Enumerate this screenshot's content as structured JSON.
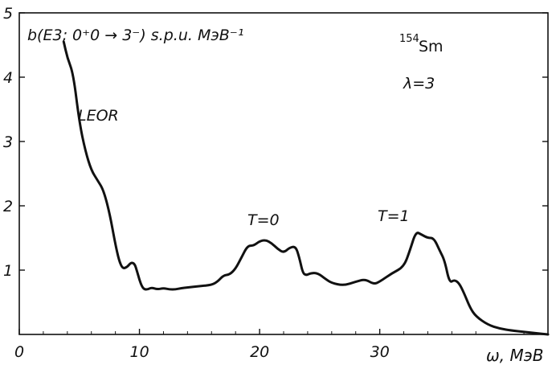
{
  "chart_data": {
    "type": "line",
    "ylabel": "b(E3; 0⁺0 → 3⁻) s.p.u. МэВ⁻¹",
    "xlabel": "ω, МэВ",
    "x_ticks": [
      "0",
      "10",
      "20",
      "30"
    ],
    "y_ticks": [
      "1",
      "2",
      "3",
      "4",
      "5"
    ],
    "xlim": [
      0,
      44
    ],
    "ylim": [
      0,
      5
    ],
    "grid": false,
    "legend": "none",
    "annotations": {
      "nucleus_mass": "154",
      "nucleus_symbol": "Sm",
      "lambda": "λ=3",
      "leor": "LEOR",
      "t0": "T=0",
      "t1": "T=1"
    },
    "series": [
      {
        "x": [
          3.7,
          4.0,
          4.5,
          5.0,
          5.5,
          6.0,
          6.5,
          7.0,
          7.5,
          8.0,
          8.3,
          8.6,
          9.0,
          9.3,
          9.6,
          9.8,
          10.0,
          10.2,
          10.4,
          10.7,
          11.0,
          11.5,
          12.0,
          12.5,
          13.0,
          13.5,
          14.0,
          15.0,
          16.0,
          16.5,
          17.0,
          17.5,
          18.0,
          18.5,
          19.0,
          19.5,
          20.0,
          20.5,
          21.0,
          21.5,
          22.0,
          22.5,
          23.0,
          23.3,
          23.6,
          23.9,
          24.2,
          24.8,
          25.5,
          26.0,
          27.0,
          28.0,
          28.8,
          29.5,
          30.0,
          31.0,
          32.0,
          32.5,
          33.0,
          33.5,
          34.0,
          34.5,
          35.0,
          35.4,
          35.8,
          36.2,
          36.6,
          37.0,
          37.5,
          38.0,
          39.0,
          40.0,
          41.0,
          42.0,
          43.0,
          44.0
        ],
        "y": [
          4.55,
          4.3,
          4.05,
          3.3,
          2.85,
          2.55,
          2.4,
          2.25,
          1.9,
          1.4,
          1.15,
          1.02,
          1.05,
          1.12,
          1.1,
          0.98,
          0.85,
          0.75,
          0.7,
          0.7,
          0.73,
          0.7,
          0.72,
          0.7,
          0.7,
          0.72,
          0.73,
          0.75,
          0.77,
          0.82,
          0.92,
          0.93,
          1.02,
          1.2,
          1.38,
          1.38,
          1.45,
          1.47,
          1.42,
          1.33,
          1.27,
          1.35,
          1.37,
          1.2,
          0.95,
          0.92,
          0.95,
          0.96,
          0.86,
          0.8,
          0.76,
          0.82,
          0.86,
          0.78,
          0.82,
          0.95,
          1.05,
          1.3,
          1.6,
          1.55,
          1.5,
          1.5,
          1.3,
          1.15,
          0.8,
          0.85,
          0.8,
          0.65,
          0.42,
          0.28,
          0.15,
          0.09,
          0.06,
          0.04,
          0.02,
          0.0
        ]
      }
    ]
  }
}
